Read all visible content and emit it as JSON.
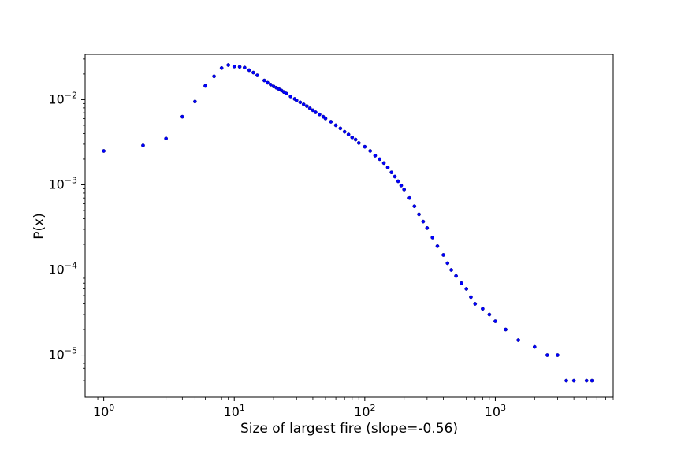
{
  "chart_data": {
    "type": "scatter",
    "title": "",
    "xlabel": "Size of largest fire (slope=-0.56)",
    "ylabel": "P(x)",
    "xscale": "log",
    "yscale": "log",
    "xlim": [
      0.72,
      8000
    ],
    "ylim": [
      3.2e-06,
      0.034
    ],
    "grid": false,
    "legend": "none",
    "marker_color": "#0000ff",
    "x_ticks": [
      {
        "value": 1,
        "mantissa": "10",
        "exp": "0"
      },
      {
        "value": 10,
        "mantissa": "10",
        "exp": "1"
      },
      {
        "value": 100,
        "mantissa": "10",
        "exp": "2"
      },
      {
        "value": 1000,
        "mantissa": "10",
        "exp": "3"
      }
    ],
    "y_ticks": [
      {
        "value": 1e-05,
        "mantissa": "10",
        "exp": "−5"
      },
      {
        "value": 0.0001,
        "mantissa": "10",
        "exp": "−4"
      },
      {
        "value": 0.001,
        "mantissa": "10",
        "exp": "−3"
      },
      {
        "value": 0.01,
        "mantissa": "10",
        "exp": "−2"
      }
    ],
    "points": [
      [
        1,
        0.0025
      ],
      [
        2,
        0.0029
      ],
      [
        3,
        0.0035
      ],
      [
        4,
        0.0063
      ],
      [
        5,
        0.0095
      ],
      [
        6,
        0.0145
      ],
      [
        7,
        0.0188
      ],
      [
        8,
        0.0235
      ],
      [
        9,
        0.0255
      ],
      [
        10,
        0.0245
      ],
      [
        11,
        0.0243
      ],
      [
        12,
        0.0238
      ],
      [
        13,
        0.0222
      ],
      [
        14,
        0.0208
      ],
      [
        15,
        0.0193
      ],
      [
        17,
        0.0168
      ],
      [
        18,
        0.0158
      ],
      [
        19,
        0.015
      ],
      [
        20,
        0.0143
      ],
      [
        21,
        0.0138
      ],
      [
        22,
        0.0133
      ],
      [
        23,
        0.0128
      ],
      [
        24,
        0.0123
      ],
      [
        25,
        0.0118
      ],
      [
        27,
        0.0109
      ],
      [
        29,
        0.0102
      ],
      [
        30,
        0.0098
      ],
      [
        32,
        0.0093
      ],
      [
        34,
        0.0088
      ],
      [
        36,
        0.0084
      ],
      [
        38,
        0.0079
      ],
      [
        40,
        0.0075
      ],
      [
        42,
        0.0071
      ],
      [
        45,
        0.0067
      ],
      [
        48,
        0.0063
      ],
      [
        50,
        0.006
      ],
      [
        55,
        0.0055
      ],
      [
        60,
        0.005
      ],
      [
        65,
        0.0046
      ],
      [
        70,
        0.0042
      ],
      [
        75,
        0.0039
      ],
      [
        80,
        0.0036
      ],
      [
        85,
        0.0034
      ],
      [
        90,
        0.0031
      ],
      [
        100,
        0.0028
      ],
      [
        110,
        0.0025
      ],
      [
        120,
        0.0022
      ],
      [
        130,
        0.002
      ],
      [
        140,
        0.0018
      ],
      [
        150,
        0.0016
      ],
      [
        160,
        0.0014
      ],
      [
        170,
        0.00125
      ],
      [
        180,
        0.0011
      ],
      [
        190,
        0.00098
      ],
      [
        200,
        0.00088
      ],
      [
        220,
        0.0007
      ],
      [
        240,
        0.00056
      ],
      [
        260,
        0.00045
      ],
      [
        280,
        0.00037
      ],
      [
        300,
        0.00031
      ],
      [
        330,
        0.00024
      ],
      [
        360,
        0.00019
      ],
      [
        400,
        0.00015
      ],
      [
        430,
        0.00012
      ],
      [
        460,
        0.0001
      ],
      [
        500,
        8.5e-05
      ],
      [
        550,
        7e-05
      ],
      [
        600,
        6e-05
      ],
      [
        650,
        4.8e-05
      ],
      [
        700,
        4e-05
      ],
      [
        800,
        3.5e-05
      ],
      [
        900,
        3e-05
      ],
      [
        1000,
        2.5e-05
      ],
      [
        1200,
        2e-05
      ],
      [
        1500,
        1.5e-05
      ],
      [
        2000,
        1.25e-05
      ],
      [
        2500,
        1e-05
      ],
      [
        3000,
        1e-05
      ],
      [
        3500,
        5e-06
      ],
      [
        4000,
        5e-06
      ],
      [
        5000,
        5e-06
      ],
      [
        5500,
        5e-06
      ]
    ]
  }
}
